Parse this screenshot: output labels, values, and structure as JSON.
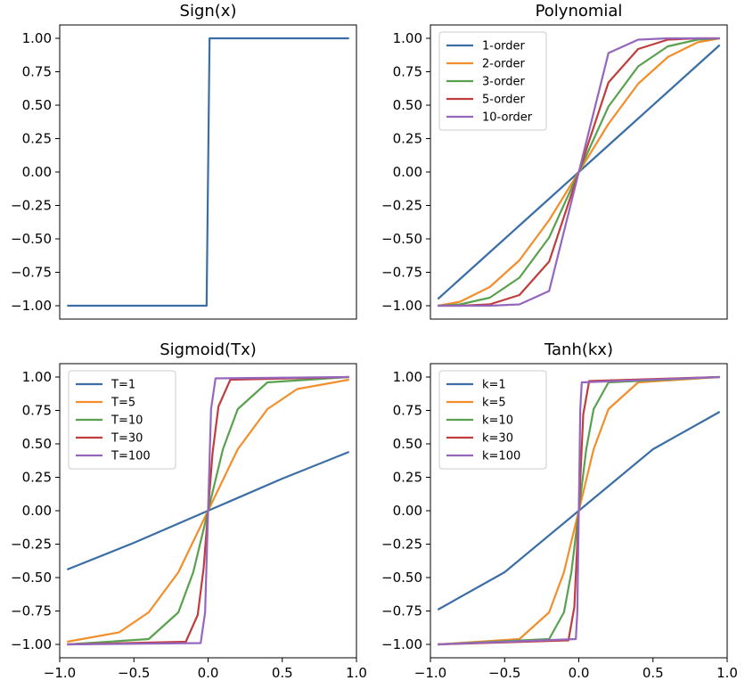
{
  "chart_data": [
    {
      "type": "line",
      "title": "Sign(x)",
      "xlim": [
        -1.0,
        1.0
      ],
      "ylim": [
        -1.1,
        1.1
      ],
      "xticks": [],
      "yticks": [
        "1.00",
        "0.75",
        "0.50",
        "0.25",
        "0.00",
        "−0.25",
        "−0.50",
        "−0.75",
        "−1.00"
      ],
      "legend": false,
      "series": [
        {
          "color": "#3a6ea5",
          "x": [
            -0.95,
            -0.01,
            0.01,
            0.95
          ],
          "y": [
            -1.0,
            -1.0,
            1.0,
            1.0
          ]
        }
      ]
    },
    {
      "type": "line",
      "title": "Polynomial",
      "xlim": [
        -1.0,
        1.0
      ],
      "ylim": [
        -1.1,
        1.1
      ],
      "xticks": [],
      "yticks": [
        "1.00",
        "0.75",
        "0.50",
        "0.25",
        "0.00",
        "−0.25",
        "−0.50",
        "−0.75",
        "−1.00"
      ],
      "legend": true,
      "legend_position": "upper left",
      "series": [
        {
          "name": "1-order",
          "color": "#3a6ea5",
          "x": [
            -0.95,
            -0.8,
            -0.6,
            -0.4,
            -0.2,
            0,
            0.2,
            0.4,
            0.6,
            0.8,
            0.95
          ],
          "y": [
            -0.95,
            -0.8,
            -0.6,
            -0.4,
            -0.2,
            0,
            0.2,
            0.4,
            0.6,
            0.8,
            0.95
          ]
        },
        {
          "name": "2-order",
          "color": "#f28e2b",
          "x": [
            -0.95,
            -0.8,
            -0.6,
            -0.4,
            -0.2,
            0,
            0.2,
            0.4,
            0.6,
            0.8,
            0.95
          ],
          "y": [
            -1.0,
            -0.97,
            -0.86,
            -0.66,
            -0.36,
            0,
            0.36,
            0.66,
            0.86,
            0.97,
            1.0
          ]
        },
        {
          "name": "3-order",
          "color": "#59a14f",
          "x": [
            -0.95,
            -0.8,
            -0.6,
            -0.4,
            -0.2,
            0,
            0.2,
            0.4,
            0.6,
            0.8,
            0.95
          ],
          "y": [
            -1.0,
            -0.99,
            -0.94,
            -0.79,
            -0.49,
            0,
            0.49,
            0.79,
            0.94,
            0.99,
            1.0
          ]
        },
        {
          "name": "5-order",
          "color": "#c03d3e",
          "x": [
            -0.95,
            -0.8,
            -0.6,
            -0.4,
            -0.2,
            0,
            0.2,
            0.4,
            0.6,
            0.8,
            0.95
          ],
          "y": [
            -1.0,
            -1.0,
            -0.99,
            -0.92,
            -0.67,
            0,
            0.67,
            0.92,
            0.99,
            1.0,
            1.0
          ]
        },
        {
          "name": "10-order",
          "color": "#9467bd",
          "x": [
            -0.95,
            -0.8,
            -0.6,
            -0.4,
            -0.2,
            0,
            0.2,
            0.4,
            0.6,
            0.8,
            0.95
          ],
          "y": [
            -1.0,
            -1.0,
            -1.0,
            -0.99,
            -0.89,
            0,
            0.89,
            0.99,
            1.0,
            1.0,
            1.0
          ]
        }
      ]
    },
    {
      "type": "line",
      "title": "Sigmoid(Tx)",
      "xlim": [
        -1.0,
        1.0
      ],
      "ylim": [
        -1.1,
        1.1
      ],
      "xticks": [
        "−1.0",
        "−0.5",
        "0.0",
        "0.5",
        "1.0"
      ],
      "yticks": [
        "1.00",
        "0.75",
        "0.50",
        "0.25",
        "0.00",
        "−0.25",
        "−0.50",
        "−0.75",
        "−1.00"
      ],
      "legend": true,
      "legend_position": "upper left",
      "series": [
        {
          "name": "T=1",
          "color": "#3a6ea5",
          "x": [
            -0.95,
            -0.5,
            0,
            0.5,
            0.95
          ],
          "y": [
            -0.44,
            -0.24,
            0,
            0.24,
            0.44
          ]
        },
        {
          "name": "T=5",
          "color": "#f28e2b",
          "x": [
            -0.95,
            -0.6,
            -0.4,
            -0.2,
            0,
            0.2,
            0.4,
            0.6,
            0.95
          ],
          "y": [
            -0.98,
            -0.91,
            -0.76,
            -0.46,
            0,
            0.46,
            0.76,
            0.91,
            0.98
          ]
        },
        {
          "name": "T=10",
          "color": "#59a14f",
          "x": [
            -0.95,
            -0.4,
            -0.2,
            -0.1,
            0,
            0.1,
            0.2,
            0.4,
            0.95
          ],
          "y": [
            -1.0,
            -0.96,
            -0.76,
            -0.46,
            0,
            0.46,
            0.76,
            0.96,
            1.0
          ]
        },
        {
          "name": "T=30",
          "color": "#c03d3e",
          "x": [
            -0.95,
            -0.15,
            -0.07,
            -0.03,
            0,
            0.03,
            0.07,
            0.15,
            0.95
          ],
          "y": [
            -1.0,
            -0.98,
            -0.78,
            -0.43,
            0,
            0.43,
            0.78,
            0.98,
            1.0
          ]
        },
        {
          "name": "T=100",
          "color": "#9467bd",
          "x": [
            -0.95,
            -0.05,
            -0.02,
            0,
            0.02,
            0.05,
            0.95
          ],
          "y": [
            -1.0,
            -0.99,
            -0.76,
            0,
            0.76,
            0.99,
            1.0
          ]
        }
      ]
    },
    {
      "type": "line",
      "title": "Tanh(kx)",
      "xlim": [
        -1.0,
        1.0
      ],
      "ylim": [
        -1.1,
        1.1
      ],
      "xticks": [
        "−1.0",
        "−0.5",
        "0.0",
        "0.5",
        "1.0"
      ],
      "yticks": [
        "1.00",
        "0.75",
        "0.50",
        "0.25",
        "0.00",
        "−0.25",
        "−0.50",
        "−0.75",
        "−1.00"
      ],
      "legend": true,
      "legend_position": "upper left",
      "series": [
        {
          "name": "k=1",
          "color": "#3a6ea5",
          "x": [
            -0.95,
            -0.5,
            0,
            0.5,
            0.95
          ],
          "y": [
            -0.74,
            -0.46,
            0,
            0.46,
            0.74
          ]
        },
        {
          "name": "k=5",
          "color": "#f28e2b",
          "x": [
            -0.95,
            -0.4,
            -0.2,
            -0.1,
            0,
            0.1,
            0.2,
            0.4,
            0.95
          ],
          "y": [
            -1.0,
            -0.96,
            -0.76,
            -0.46,
            0,
            0.46,
            0.76,
            0.96,
            1.0
          ]
        },
        {
          "name": "k=10",
          "color": "#59a14f",
          "x": [
            -0.95,
            -0.2,
            -0.1,
            -0.05,
            0,
            0.05,
            0.1,
            0.2,
            0.95
          ],
          "y": [
            -1.0,
            -0.96,
            -0.76,
            -0.46,
            0,
            0.46,
            0.76,
            0.96,
            1.0
          ]
        },
        {
          "name": "k=30",
          "color": "#c03d3e",
          "x": [
            -0.95,
            -0.07,
            -0.03,
            0,
            0.03,
            0.07,
            0.95
          ],
          "y": [
            -1.0,
            -0.97,
            -0.72,
            0,
            0.72,
            0.97,
            1.0
          ]
        },
        {
          "name": "k=100",
          "color": "#9467bd",
          "x": [
            -0.95,
            -0.02,
            -0.01,
            0,
            0.01,
            0.02,
            0.95
          ],
          "y": [
            -1.0,
            -0.96,
            -0.76,
            0,
            0.76,
            0.96,
            1.0
          ]
        }
      ]
    }
  ]
}
